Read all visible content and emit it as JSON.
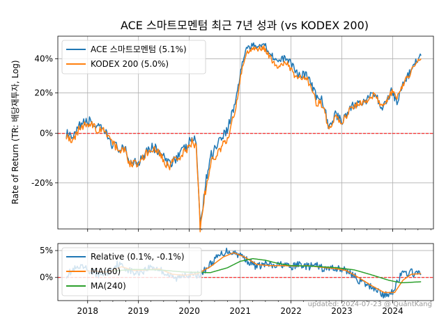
{
  "title": "ACE 스마트모멘텀 최근 7년 성과 (vs KODEX 200)",
  "footer": "updated: 2024-07-23 @ QuantKang",
  "chart_data": [
    {
      "type": "line",
      "title": "ACE 스마트모멘텀 최근 7년 성과 (vs KODEX 200)",
      "ylabel": "Rate of Return (TR: 배당재투자, Log)",
      "yscale": "log",
      "grid": true,
      "legend_position": "upper-left",
      "x_ticks": [
        "2018",
        "2019",
        "2020",
        "2021",
        "2022",
        "2023",
        "2024"
      ],
      "y_ticks": [
        {
          "label": "40%",
          "value": 40
        },
        {
          "label": "20%",
          "value": 20
        },
        {
          "label": "0%",
          "value": 0
        },
        {
          "label": "-20%",
          "value": -20
        }
      ],
      "reference_line": {
        "value": 0,
        "color": "#ff0000",
        "style": "dashed"
      },
      "ylim": [
        -35,
        55
      ],
      "series": [
        {
          "name": "ACE 스마트모멘텀 (5.1%)",
          "color": "#1f77b4",
          "points": [
            [
              "2017-08-01",
              0
            ],
            [
              "2017-09-15",
              -3
            ],
            [
              "2017-11-10",
              4
            ],
            [
              "2018-01-20",
              6
            ],
            [
              "2018-03-01",
              3
            ],
            [
              "2018-05-01",
              1
            ],
            [
              "2018-07-01",
              -5
            ],
            [
              "2018-10-01",
              -8
            ],
            [
              "2018-11-01",
              -12
            ],
            [
              "2019-01-01",
              -12
            ],
            [
              "2019-03-01",
              -7
            ],
            [
              "2019-04-15",
              -6
            ],
            [
              "2019-06-01",
              -8
            ],
            [
              "2019-08-01",
              -13
            ],
            [
              "2019-10-01",
              -10
            ],
            [
              "2019-12-15",
              -6
            ],
            [
              "2020-01-20",
              -2
            ],
            [
              "2020-02-20",
              -4
            ],
            [
              "2020-03-19",
              -35
            ],
            [
              "2020-04-15",
              -24
            ],
            [
              "2020-06-01",
              -10
            ],
            [
              "2020-08-01",
              -3
            ],
            [
              "2020-10-01",
              2
            ],
            [
              "2020-12-01",
              16
            ],
            [
              "2021-01-10",
              35
            ],
            [
              "2021-02-15",
              47
            ],
            [
              "2021-04-01",
              48
            ],
            [
              "2021-06-20",
              50
            ],
            [
              "2021-08-01",
              44
            ],
            [
              "2021-10-01",
              38
            ],
            [
              "2021-12-01",
              41
            ],
            [
              "2022-01-25",
              34
            ],
            [
              "2022-03-01",
              30
            ],
            [
              "2022-04-15",
              31
            ],
            [
              "2022-06-01",
              24
            ],
            [
              "2022-07-01",
              18
            ],
            [
              "2022-08-15",
              16
            ],
            [
              "2022-10-01",
              2
            ],
            [
              "2022-11-15",
              9
            ],
            [
              "2023-01-05",
              6
            ],
            [
              "2023-03-01",
              12
            ],
            [
              "2023-05-01",
              15
            ],
            [
              "2023-07-01",
              16
            ],
            [
              "2023-08-15",
              20
            ],
            [
              "2023-10-25",
              12
            ],
            [
              "2023-12-28",
              22
            ],
            [
              "2024-02-01",
              14
            ],
            [
              "2024-03-15",
              25
            ],
            [
              "2024-05-01",
              31
            ],
            [
              "2024-06-15",
              38
            ],
            [
              "2024-07-23",
              42
            ]
          ]
        },
        {
          "name": "KODEX 200 (5.0%)",
          "color": "#ff7f0e",
          "points": [
            [
              "2017-08-01",
              -1
            ],
            [
              "2017-09-15",
              -3
            ],
            [
              "2017-11-10",
              3
            ],
            [
              "2018-01-20",
              5
            ],
            [
              "2018-03-01",
              2
            ],
            [
              "2018-05-01",
              1
            ],
            [
              "2018-07-01",
              -5
            ],
            [
              "2018-10-01",
              -8
            ],
            [
              "2018-11-01",
              -13
            ],
            [
              "2019-01-01",
              -13
            ],
            [
              "2019-03-01",
              -8
            ],
            [
              "2019-04-15",
              -7
            ],
            [
              "2019-06-01",
              -9
            ],
            [
              "2019-08-01",
              -14
            ],
            [
              "2019-10-01",
              -11
            ],
            [
              "2019-12-15",
              -7
            ],
            [
              "2020-01-20",
              -4
            ],
            [
              "2020-02-20",
              -6
            ],
            [
              "2020-03-19",
              -35
            ],
            [
              "2020-04-15",
              -26
            ],
            [
              "2020-06-01",
              -13
            ],
            [
              "2020-08-01",
              -7
            ],
            [
              "2020-10-01",
              -3
            ],
            [
              "2020-12-01",
              12
            ],
            [
              "2021-01-10",
              32
            ],
            [
              "2021-02-15",
              44
            ],
            [
              "2021-04-01",
              46
            ],
            [
              "2021-06-20",
              47
            ],
            [
              "2021-08-01",
              41
            ],
            [
              "2021-10-01",
              34
            ],
            [
              "2021-12-01",
              38
            ],
            [
              "2022-01-25",
              30
            ],
            [
              "2022-03-01",
              29
            ],
            [
              "2022-04-15",
              29
            ],
            [
              "2022-06-01",
              22
            ],
            [
              "2022-07-01",
              15
            ],
            [
              "2022-08-15",
              14
            ],
            [
              "2022-10-01",
              1
            ],
            [
              "2022-11-15",
              8
            ],
            [
              "2023-01-05",
              5
            ],
            [
              "2023-03-01",
              11
            ],
            [
              "2023-05-01",
              14
            ],
            [
              "2023-07-01",
              15
            ],
            [
              "2023-08-15",
              19
            ],
            [
              "2023-10-25",
              13
            ],
            [
              "2023-12-28",
              21
            ],
            [
              "2024-02-01",
              17
            ],
            [
              "2024-03-15",
              25
            ],
            [
              "2024-05-01",
              30
            ],
            [
              "2024-06-15",
              37
            ],
            [
              "2024-07-23",
              40
            ]
          ]
        }
      ]
    },
    {
      "type": "line",
      "grid": true,
      "legend_position": "upper-left",
      "x_ticks": [
        "2018",
        "2019",
        "2020",
        "2021",
        "2022",
        "2023",
        "2024"
      ],
      "y_ticks": [
        {
          "label": "5%",
          "value": 5
        },
        {
          "label": "0%",
          "value": 0
        }
      ],
      "reference_line": {
        "value": 0,
        "color": "#ff0000",
        "style": "dashed"
      },
      "ylim": [
        -4.3,
        6.3
      ],
      "series": [
        {
          "name": "Relative (0.1%, -0.1%)",
          "color": "#1f77b4",
          "points": [
            [
              "2017-08-01",
              0.5
            ],
            [
              "2017-10-01",
              1.5
            ],
            [
              "2017-12-01",
              1.8
            ],
            [
              "2018-02-01",
              1.0
            ],
            [
              "2018-04-01",
              0.5
            ],
            [
              "2018-06-01",
              1.0
            ],
            [
              "2018-08-01",
              2.5
            ],
            [
              "2018-10-01",
              1.8
            ],
            [
              "2018-12-01",
              0.8
            ],
            [
              "2019-02-01",
              1.2
            ],
            [
              "2019-04-01",
              2.0
            ],
            [
              "2019-06-01",
              1.5
            ],
            [
              "2019-08-01",
              0.5
            ],
            [
              "2019-10-01",
              -0.3
            ],
            [
              "2019-12-01",
              0.8
            ],
            [
              "2020-02-01",
              0.3
            ],
            [
              "2020-04-01",
              0.8
            ],
            [
              "2020-06-01",
              2.5
            ],
            [
              "2020-08-01",
              4.0
            ],
            [
              "2020-10-01",
              5.0
            ],
            [
              "2020-12-01",
              4.5
            ],
            [
              "2021-01-15",
              4.0
            ],
            [
              "2021-03-01",
              3.0
            ],
            [
              "2021-05-01",
              2.0
            ],
            [
              "2021-07-01",
              2.5
            ],
            [
              "2021-09-01",
              2.0
            ],
            [
              "2021-11-01",
              2.5
            ],
            [
              "2022-01-01",
              1.8
            ],
            [
              "2022-03-01",
              2.5
            ],
            [
              "2022-05-01",
              2.0
            ],
            [
              "2022-07-01",
              2.2
            ],
            [
              "2022-09-01",
              1.5
            ],
            [
              "2022-11-01",
              1.8
            ],
            [
              "2023-01-01",
              1.5
            ],
            [
              "2023-03-01",
              1.0
            ],
            [
              "2023-05-01",
              -0.5
            ],
            [
              "2023-07-01",
              -1.5
            ],
            [
              "2023-09-01",
              -2.0
            ],
            [
              "2023-11-01",
              -3.5
            ],
            [
              "2024-01-01",
              -2.5
            ],
            [
              "2024-03-01",
              0.5
            ],
            [
              "2024-05-01",
              1.0
            ],
            [
              "2024-07-23",
              0.5
            ]
          ]
        },
        {
          "name": "MA(60)",
          "color": "#ff7f0e",
          "points": [
            [
              "2017-10-15",
              1.2
            ],
            [
              "2018-02-01",
              1.2
            ],
            [
              "2018-06-01",
              1.0
            ],
            [
              "2018-09-01",
              2.0
            ],
            [
              "2018-12-01",
              1.3
            ],
            [
              "2019-03-01",
              1.4
            ],
            [
              "2019-06-01",
              1.6
            ],
            [
              "2019-09-01",
              0.6
            ],
            [
              "2019-12-01",
              0.4
            ],
            [
              "2020-03-01",
              0.7
            ],
            [
              "2020-06-01",
              2.0
            ],
            [
              "2020-09-01",
              3.8
            ],
            [
              "2020-11-15",
              4.6
            ],
            [
              "2021-02-01",
              3.8
            ],
            [
              "2021-05-01",
              2.4
            ],
            [
              "2021-08-01",
              2.2
            ],
            [
              "2021-11-01",
              2.2
            ],
            [
              "2022-02-01",
              2.1
            ],
            [
              "2022-05-01",
              2.2
            ],
            [
              "2022-08-01",
              1.9
            ],
            [
              "2022-11-01",
              1.7
            ],
            [
              "2023-02-01",
              1.3
            ],
            [
              "2023-05-01",
              0.0
            ],
            [
              "2023-08-01",
              -1.5
            ],
            [
              "2023-11-01",
              -2.8
            ],
            [
              "2024-01-15",
              -2.8
            ],
            [
              "2024-03-15",
              -0.5
            ],
            [
              "2024-05-15",
              0.6
            ],
            [
              "2024-07-23",
              0.7
            ]
          ]
        },
        {
          "name": "MA(240)",
          "color": "#2ca02c",
          "points": [
            [
              "2018-07-01",
              1.2
            ],
            [
              "2018-12-01",
              1.5
            ],
            [
              "2019-06-01",
              1.4
            ],
            [
              "2019-12-01",
              1.0
            ],
            [
              "2020-06-01",
              0.9
            ],
            [
              "2020-10-01",
              1.8
            ],
            [
              "2021-01-01",
              3.0
            ],
            [
              "2021-04-01",
              3.5
            ],
            [
              "2021-07-01",
              3.2
            ],
            [
              "2021-10-01",
              2.6
            ],
            [
              "2022-01-01",
              2.2
            ],
            [
              "2022-06-01",
              2.1
            ],
            [
              "2022-12-01",
              1.8
            ],
            [
              "2023-04-01",
              1.4
            ],
            [
              "2023-08-01",
              0.5
            ],
            [
              "2023-12-01",
              -0.5
            ],
            [
              "2024-03-01",
              -1.0
            ],
            [
              "2024-07-23",
              -0.8
            ]
          ]
        }
      ]
    }
  ]
}
